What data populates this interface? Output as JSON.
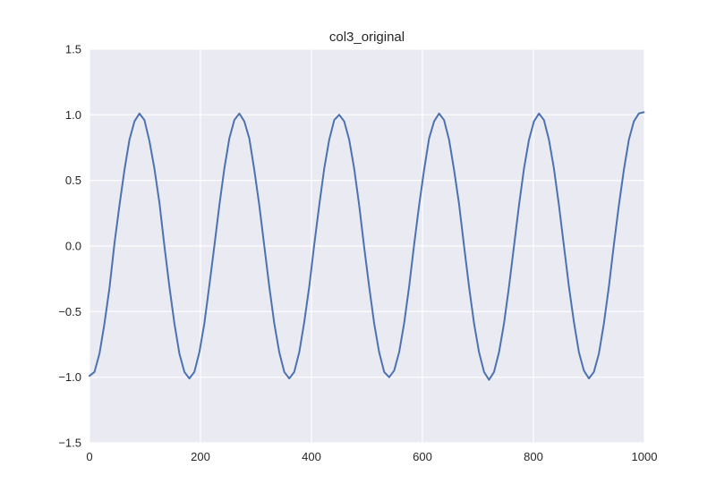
{
  "chart_data": {
    "type": "line",
    "title": "col3_original",
    "xlabel": "",
    "ylabel": "",
    "xlim": [
      0,
      1000
    ],
    "ylim": [
      -1.5,
      1.5
    ],
    "x_ticks": [
      0,
      200,
      400,
      600,
      800,
      1000
    ],
    "y_ticks": [
      -1.5,
      -1.0,
      -0.5,
      0.0,
      0.5,
      1.0,
      1.5
    ],
    "x_tick_labels": [
      "0",
      "200",
      "400",
      "600",
      "800",
      "1000"
    ],
    "y_tick_labels": [
      "−1.5",
      "−1.0",
      "−0.5",
      "0.0",
      "0.5",
      "1.0",
      "1.5"
    ],
    "grid": true,
    "legend": "none",
    "colors": {
      "background": "#eaeaf2",
      "grid": "#ffffff",
      "line": "#4c72b0",
      "text": "#262626"
    },
    "series": [
      {
        "x": [
          0,
          9,
          18,
          27,
          36,
          45,
          54,
          63,
          72,
          81,
          90,
          99,
          108,
          117,
          126,
          135,
          144,
          153,
          162,
          171,
          180,
          189,
          198,
          207,
          216,
          225,
          234,
          243,
          252,
          261,
          270,
          279,
          288,
          297,
          306,
          315,
          324,
          333,
          342,
          351,
          360,
          369,
          378,
          387,
          396,
          405,
          414,
          423,
          432,
          441,
          450,
          459,
          468,
          477,
          486,
          495,
          504,
          513,
          522,
          531,
          540,
          549,
          558,
          567,
          576,
          585,
          594,
          603,
          612,
          621,
          630,
          639,
          648,
          657,
          666,
          675,
          684,
          693,
          702,
          711,
          720,
          729,
          738,
          747,
          756,
          765,
          774,
          783,
          792,
          801,
          810,
          819,
          828,
          837,
          846,
          855,
          864,
          873,
          882,
          891,
          900,
          909,
          918,
          927,
          936,
          945,
          954,
          963,
          972,
          981,
          990,
          999
        ],
        "y": [
          -0.99,
          -0.96,
          -0.82,
          -0.59,
          -0.32,
          0.02,
          0.31,
          0.58,
          0.81,
          0.95,
          1.01,
          0.96,
          0.8,
          0.59,
          0.33,
          0.0,
          -0.31,
          -0.59,
          -0.82,
          -0.96,
          -1.01,
          -0.96,
          -0.81,
          -0.59,
          -0.3,
          0.0,
          0.31,
          0.59,
          0.82,
          0.96,
          1.01,
          0.95,
          0.82,
          0.58,
          0.31,
          0.0,
          -0.31,
          -0.59,
          -0.81,
          -0.96,
          -1.01,
          -0.96,
          -0.81,
          -0.58,
          -0.31,
          0.01,
          0.31,
          0.59,
          0.81,
          0.96,
          1.0,
          0.95,
          0.81,
          0.59,
          0.31,
          -0.01,
          -0.31,
          -0.59,
          -0.81,
          -0.96,
          -1.0,
          -0.95,
          -0.81,
          -0.59,
          -0.31,
          0.01,
          0.31,
          0.58,
          0.82,
          0.95,
          1.01,
          0.96,
          0.81,
          0.58,
          0.32,
          0.0,
          -0.31,
          -0.59,
          -0.81,
          -0.96,
          -1.02,
          -0.96,
          -0.81,
          -0.59,
          -0.31,
          0.0,
          0.31,
          0.59,
          0.81,
          0.95,
          1.01,
          0.96,
          0.81,
          0.59,
          0.31,
          0.0,
          -0.31,
          -0.58,
          -0.81,
          -0.95,
          -1.01,
          -0.96,
          -0.82,
          -0.59,
          -0.31,
          0.01,
          0.31,
          0.58,
          0.81,
          0.95,
          1.01,
          1.02
        ]
      }
    ]
  }
}
